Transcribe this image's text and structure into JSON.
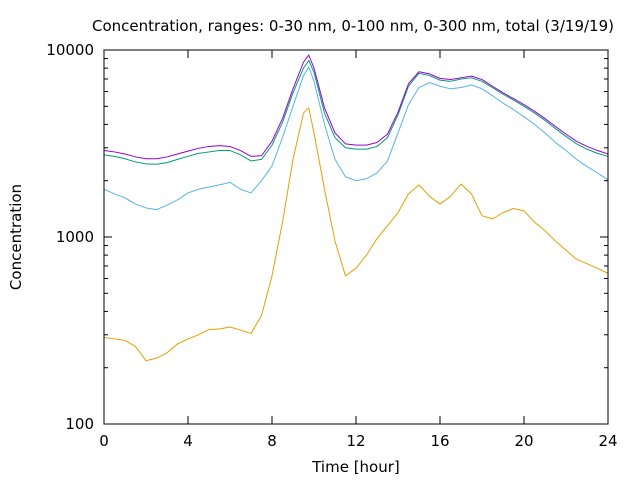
{
  "chart_data": {
    "type": "line",
    "title": "Concentration, ranges: 0-30 nm, 0-100 nm, 0-300 nm, total (3/19/19)",
    "xlabel": "Time [hour]",
    "ylabel": "Concentration",
    "xlim": [
      0,
      24
    ],
    "ylim": [
      100,
      10000
    ],
    "yscale": "log",
    "grid": false,
    "legend": "none",
    "x_ticks": [
      0,
      4,
      8,
      12,
      16,
      20,
      24
    ],
    "x_tick_labels": [
      "0",
      "4",
      "8",
      "12",
      "16",
      "20",
      "24"
    ],
    "y_ticks": [
      100,
      1000,
      10000
    ],
    "y_tick_labels": [
      "100",
      "1000",
      "10000"
    ],
    "x": [
      0,
      0.5,
      1,
      1.5,
      2,
      2.5,
      3,
      3.5,
      4,
      4.5,
      5,
      5.5,
      6,
      6.5,
      7,
      7.5,
      8,
      8.5,
      9,
      9.5,
      9.75,
      10,
      10.5,
      11,
      11.5,
      12,
      12.5,
      13,
      13.5,
      14,
      14.5,
      15,
      15.5,
      16,
      16.5,
      17,
      17.5,
      18,
      18.5,
      19,
      19.5,
      20,
      20.5,
      21,
      21.5,
      22,
      22.5,
      23,
      23.5,
      24
    ],
    "series": [
      {
        "color": "#e69f00",
        "values": [
          290,
          285,
          280,
          260,
          218,
          225,
          240,
          268,
          285,
          300,
          320,
          322,
          330,
          318,
          305,
          380,
          620,
          1200,
          2600,
          4600,
          4900,
          3600,
          1800,
          950,
          620,
          680,
          800,
          980,
          1150,
          1350,
          1700,
          1900,
          1650,
          1500,
          1650,
          1920,
          1700,
          1300,
          1250,
          1350,
          1420,
          1380,
          1200,
          1080,
          950,
          850,
          760,
          720,
          680,
          640
        ]
      },
      {
        "color": "#56b4e9",
        "values": [
          1800,
          1700,
          1620,
          1500,
          1430,
          1400,
          1480,
          1580,
          1720,
          1800,
          1850,
          1900,
          1960,
          1800,
          1720,
          2000,
          2400,
          3400,
          5000,
          7300,
          8100,
          6800,
          4000,
          2600,
          2100,
          2000,
          2050,
          2200,
          2550,
          3600,
          5100,
          6300,
          6700,
          6400,
          6200,
          6300,
          6500,
          6200,
          5700,
          5200,
          4800,
          4400,
          4000,
          3600,
          3200,
          2900,
          2600,
          2380,
          2200,
          2020
        ]
      },
      {
        "color": "#009e73",
        "values": [
          2750,
          2700,
          2620,
          2520,
          2460,
          2450,
          2500,
          2600,
          2700,
          2800,
          2850,
          2900,
          2900,
          2750,
          2550,
          2600,
          3100,
          4100,
          5900,
          8000,
          8800,
          7600,
          4600,
          3400,
          3000,
          2950,
          2950,
          3050,
          3400,
          4500,
          6400,
          7500,
          7300,
          6900,
          6800,
          7000,
          7100,
          6800,
          6300,
          5800,
          5400,
          5000,
          4600,
          4200,
          3800,
          3450,
          3150,
          2950,
          2800,
          2700
        ]
      },
      {
        "color": "#9400d3",
        "values": [
          2900,
          2850,
          2780,
          2680,
          2620,
          2620,
          2680,
          2780,
          2880,
          2980,
          3050,
          3080,
          3050,
          2900,
          2700,
          2720,
          3250,
          4300,
          6200,
          8600,
          9400,
          8000,
          4900,
          3600,
          3150,
          3100,
          3100,
          3200,
          3550,
          4650,
          6600,
          7650,
          7450,
          7050,
          6950,
          7100,
          7250,
          6950,
          6400,
          5900,
          5500,
          5100,
          4700,
          4300,
          3900,
          3550,
          3250,
          3050,
          2900,
          2780
        ]
      }
    ]
  }
}
